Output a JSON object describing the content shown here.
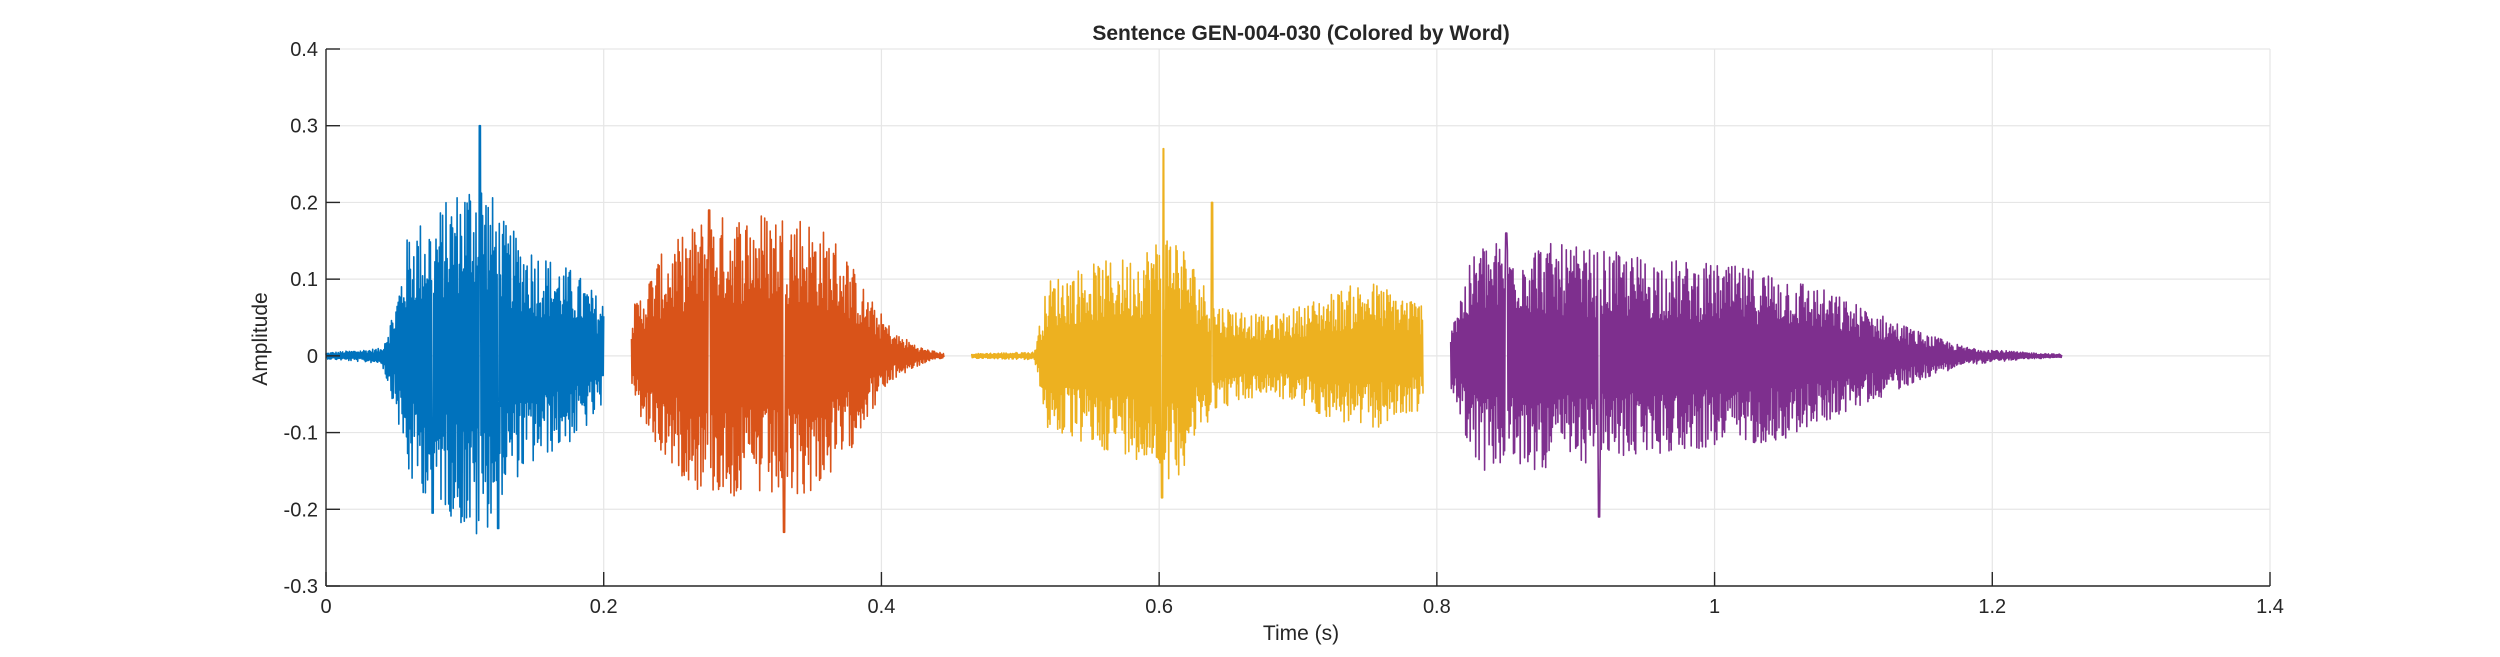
{
  "chart_data": {
    "type": "line",
    "title": "Sentence GEN-004-030 (Colored by Word)",
    "xlabel": "Time (s)",
    "ylabel": "Amplitude",
    "xlim": [
      0,
      1.4
    ],
    "ylim": [
      -0.3,
      0.4
    ],
    "xticks": [
      0,
      0.2,
      0.4,
      0.6,
      0.8,
      1,
      1.2,
      1.4
    ],
    "xtick_labels": [
      "0",
      "0.2",
      "0.4",
      "0.6",
      "0.8",
      "1",
      "1.2",
      "1.4"
    ],
    "yticks": [
      -0.3,
      -0.2,
      -0.1,
      0,
      0.1,
      0.2,
      0.3,
      0.4
    ],
    "ytick_labels": [
      "-0.3",
      "-0.2",
      "-0.1",
      "0",
      "0.1",
      "0.2",
      "0.3",
      "0.4"
    ],
    "grid": true,
    "series": [
      {
        "color": "#0072BD",
        "start": 0.0,
        "end": 0.2,
        "envelope": [
          [
            0.0,
            0.004
          ],
          [
            0.04,
            0.01
          ],
          [
            0.05,
            0.07
          ],
          [
            0.06,
            0.17
          ],
          [
            0.08,
            0.19
          ],
          [
            0.11,
            0.25
          ],
          [
            0.13,
            0.17
          ],
          [
            0.16,
            0.13
          ],
          [
            0.18,
            0.11
          ],
          [
            0.2,
            0.07
          ]
        ],
        "peaks": [
          [
            0.111,
            0.3
          ],
          [
            0.124,
            -0.225
          ],
          [
            0.077,
            -0.205
          ]
        ]
      },
      {
        "color": "#D95319",
        "start": 0.22,
        "end": 0.445,
        "envelope": [
          [
            0.22,
            0.06
          ],
          [
            0.24,
            0.13
          ],
          [
            0.27,
            0.18
          ],
          [
            0.31,
            0.19
          ],
          [
            0.34,
            0.19
          ],
          [
            0.37,
            0.15
          ],
          [
            0.39,
            0.08
          ],
          [
            0.41,
            0.03
          ],
          [
            0.43,
            0.01
          ],
          [
            0.445,
            0.003
          ]
        ],
        "peaks": [
          [
            0.33,
            -0.23
          ],
          [
            0.276,
            0.19
          ]
        ]
      },
      {
        "color": "#EDB120",
        "start": 0.465,
        "end": 0.79,
        "envelope": [
          [
            0.465,
            0.003
          ],
          [
            0.51,
            0.005
          ],
          [
            0.52,
            0.1
          ],
          [
            0.55,
            0.12
          ],
          [
            0.58,
            0.13
          ],
          [
            0.61,
            0.17
          ],
          [
            0.64,
            0.07
          ],
          [
            0.68,
            0.05
          ],
          [
            0.72,
            0.08
          ],
          [
            0.75,
            0.1
          ],
          [
            0.79,
            0.07
          ]
        ],
        "peaks": [
          [
            0.603,
            0.27
          ],
          [
            0.602,
            -0.185
          ],
          [
            0.638,
            0.2
          ]
        ]
      },
      {
        "color": "#7E2F8E",
        "start": 0.81,
        "end": 1.25,
        "envelope": [
          [
            0.81,
            0.05
          ],
          [
            0.83,
            0.15
          ],
          [
            0.87,
            0.15
          ],
          [
            0.95,
            0.13
          ],
          [
            1.0,
            0.12
          ],
          [
            1.05,
            0.11
          ],
          [
            1.1,
            0.07
          ],
          [
            1.15,
            0.03
          ],
          [
            1.18,
            0.012
          ],
          [
            1.22,
            0.005
          ],
          [
            1.25,
            0.002
          ]
        ],
        "peaks": [
          [
            0.917,
            -0.21
          ],
          [
            0.85,
            0.16
          ]
        ]
      }
    ]
  }
}
